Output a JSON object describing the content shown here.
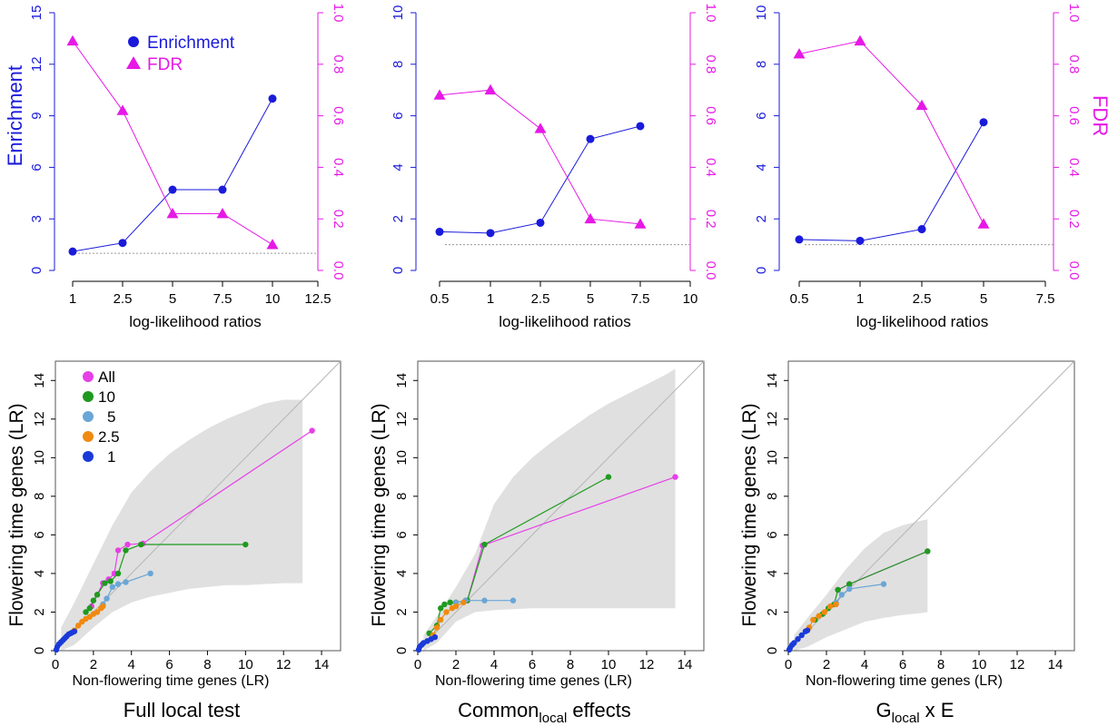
{
  "figure": {
    "background": "#ffffff"
  },
  "colors": {
    "enrichment": "#1a1adb",
    "fdr": "#e619e6",
    "all": "#e640e6",
    "lr10": "#1f9a1f",
    "lr5": "#6aa6d6",
    "lr2_5": "#f08a10",
    "lr1": "#1a3ad8",
    "band": "#e0e0e0",
    "axis": "#000000",
    "refline": "#999999"
  },
  "chart_data": [
    {
      "type": "line",
      "panel": "top-left",
      "xlabel": "log-likelihood ratios",
      "ylabel_left": "Enrichment",
      "ylabel_right": "",
      "x_ticks": [
        "1",
        "2.5",
        "5",
        "7.5",
        "10",
        "12.5"
      ],
      "y_left_ticks": [
        0,
        3,
        6,
        9,
        12,
        15
      ],
      "y_left_lim": [
        0,
        15
      ],
      "y_right_ticks": [
        "0.0",
        "0.2",
        "0.4",
        "0.6",
        "0.8",
        "1.0"
      ],
      "y_right_lim": [
        0,
        1
      ],
      "legend": {
        "placement": "top",
        "items": [
          {
            "label": "Enrichment",
            "marker": "circle",
            "color": "#1a1adb"
          },
          {
            "label": "FDR",
            "marker": "triangle",
            "color": "#e619e6"
          }
        ]
      },
      "series": [
        {
          "name": "Enrichment",
          "axis": "left",
          "marker": "circle",
          "color": "#1a1adb",
          "x": [
            "1",
            "2.5",
            "5",
            "7.5",
            "10"
          ],
          "values": [
            1.1,
            1.6,
            4.7,
            4.7,
            10.0
          ]
        },
        {
          "name": "FDR",
          "axis": "right",
          "marker": "triangle",
          "color": "#e619e6",
          "x": [
            "1",
            "2.5",
            "5",
            "7.5",
            "10"
          ],
          "values": [
            0.89,
            0.62,
            0.22,
            0.22,
            0.1
          ]
        }
      ],
      "reference_line": {
        "axis": "left",
        "y": 1
      }
    },
    {
      "type": "line",
      "panel": "top-middle",
      "xlabel": "log-likelihood ratios",
      "ylabel_left": "",
      "ylabel_right": "",
      "x_ticks": [
        "0.5",
        "1",
        "2.5",
        "5",
        "7.5",
        "10"
      ],
      "y_left_ticks": [
        0,
        2,
        4,
        6,
        8,
        10
      ],
      "y_left_lim": [
        0,
        10
      ],
      "y_right_ticks": [
        "0.0",
        "0.2",
        "0.4",
        "0.6",
        "0.8",
        "1.0"
      ],
      "y_right_lim": [
        0,
        1
      ],
      "series": [
        {
          "name": "Enrichment",
          "axis": "left",
          "marker": "circle",
          "color": "#1a1adb",
          "x": [
            "0.5",
            "1",
            "2.5",
            "5",
            "7.5"
          ],
          "values": [
            1.5,
            1.45,
            1.85,
            5.1,
            5.6
          ]
        },
        {
          "name": "FDR",
          "axis": "right",
          "marker": "triangle",
          "color": "#e619e6",
          "x": [
            "0.5",
            "1",
            "2.5",
            "5",
            "7.5"
          ],
          "values": [
            0.68,
            0.7,
            0.55,
            0.2,
            0.18
          ]
        }
      ],
      "reference_line": {
        "axis": "left",
        "y": 1
      }
    },
    {
      "type": "line",
      "panel": "top-right",
      "xlabel": "log-likelihood ratios",
      "ylabel_left": "",
      "ylabel_right": "FDR",
      "x_ticks": [
        "0.5",
        "1",
        "2.5",
        "5",
        "7.5"
      ],
      "y_left_ticks": [
        0,
        2,
        4,
        6,
        8,
        10
      ],
      "y_left_lim": [
        0,
        10
      ],
      "y_right_ticks": [
        "0.0",
        "0.2",
        "0.4",
        "0.6",
        "0.8",
        "1.0"
      ],
      "y_right_lim": [
        0,
        1
      ],
      "series": [
        {
          "name": "Enrichment",
          "axis": "left",
          "marker": "circle",
          "color": "#1a1adb",
          "x": [
            "0.5",
            "1",
            "2.5",
            "5"
          ],
          "values": [
            1.2,
            1.15,
            1.6,
            5.75
          ]
        },
        {
          "name": "FDR",
          "axis": "right",
          "marker": "triangle",
          "color": "#e619e6",
          "x": [
            "0.5",
            "1",
            "2.5",
            "5"
          ],
          "values": [
            0.84,
            0.89,
            0.64,
            0.18
          ]
        }
      ],
      "reference_line": {
        "axis": "left",
        "y": 1
      }
    },
    {
      "type": "scatter",
      "panel": "bottom-left",
      "title": "Full local test",
      "xlabel": "Non-flowering time genes (LR)",
      "ylabel": "Flowering time genes (LR)",
      "xlim": [
        0,
        15
      ],
      "ylim": [
        0,
        15
      ],
      "ticks": [
        0,
        2,
        4,
        6,
        8,
        10,
        12,
        14
      ],
      "diagonal": true,
      "band": {
        "x": [
          0.3,
          1,
          2,
          3,
          4,
          5,
          6,
          7,
          8,
          9,
          10,
          11,
          12,
          13,
          13
        ],
        "upper": [
          1.2,
          2.5,
          4.5,
          6.5,
          8.2,
          9.3,
          10.2,
          10.9,
          11.5,
          12.0,
          12.4,
          12.8,
          13.0,
          13.0,
          3.5
        ],
        "lower": [
          0.0,
          0.3,
          1.2,
          2.0,
          2.5,
          2.8,
          3.0,
          3.2,
          3.3,
          3.4,
          3.4,
          3.45,
          3.5,
          3.5,
          3.5
        ]
      },
      "legend": {
        "placement": "top-left",
        "items": [
          {
            "label": "All",
            "color": "#e640e6"
          },
          {
            "label": "10",
            "color": "#1f9a1f"
          },
          {
            "label": "5",
            "color": "#6aa6d6"
          },
          {
            "label": "2.5",
            "color": "#f08a10"
          },
          {
            "label": "1",
            "color": "#1a3ad8"
          }
        ]
      },
      "series": [
        {
          "name": "1",
          "color": "#1a3ad8",
          "points": [
            [
              0.05,
              0.05
            ],
            [
              0.1,
              0.2
            ],
            [
              0.2,
              0.35
            ],
            [
              0.3,
              0.45
            ],
            [
              0.4,
              0.55
            ],
            [
              0.5,
              0.65
            ],
            [
              0.6,
              0.75
            ],
            [
              0.7,
              0.85
            ],
            [
              0.8,
              0.9
            ],
            [
              0.9,
              0.95
            ],
            [
              1.0,
              1.0
            ]
          ]
        },
        {
          "name": "2.5",
          "color": "#f08a10",
          "points": [
            [
              1.0,
              1.05
            ],
            [
              1.2,
              1.3
            ],
            [
              1.4,
              1.5
            ],
            [
              1.6,
              1.65
            ],
            [
              1.8,
              1.75
            ],
            [
              2.0,
              1.9
            ],
            [
              2.2,
              2.0
            ],
            [
              2.4,
              2.2
            ],
            [
              2.5,
              2.3
            ]
          ]
        },
        {
          "name": "5",
          "color": "#6aa6d6",
          "points": [
            [
              2.5,
              2.4
            ],
            [
              2.7,
              2.7
            ],
            [
              3.0,
              3.3
            ],
            [
              3.3,
              3.45
            ],
            [
              3.7,
              3.55
            ],
            [
              5.0,
              4.0
            ]
          ]
        },
        {
          "name": "10",
          "color": "#1f9a1f",
          "points": [
            [
              1.6,
              2.0
            ],
            [
              1.8,
              2.2
            ],
            [
              2.0,
              2.6
            ],
            [
              2.2,
              2.9
            ],
            [
              2.6,
              3.5
            ],
            [
              2.9,
              3.6
            ],
            [
              3.3,
              4.0
            ],
            [
              3.7,
              5.2
            ],
            [
              4.5,
              5.5
            ],
            [
              10.0,
              5.5
            ]
          ]
        },
        {
          "name": "All",
          "color": "#e640e6",
          "points": [
            [
              1.9,
              2.3
            ],
            [
              2.2,
              2.9
            ],
            [
              2.5,
              3.5
            ],
            [
              2.8,
              3.7
            ],
            [
              3.1,
              4.0
            ],
            [
              3.3,
              5.2
            ],
            [
              3.8,
              5.5
            ],
            [
              4.6,
              5.55
            ],
            [
              13.5,
              11.4
            ]
          ]
        }
      ]
    },
    {
      "type": "scatter",
      "panel": "bottom-middle",
      "title": "Commonlocal effects",
      "title_parts": {
        "before": "Common",
        "subscript": "local",
        "after": " effects"
      },
      "xlabel": "Non-flowering time genes (LR)",
      "ylabel": "Flowering time genes (LR)",
      "xlim": [
        0,
        15
      ],
      "ylim": [
        0,
        15
      ],
      "ticks": [
        0,
        2,
        4,
        6,
        8,
        10,
        12,
        14
      ],
      "diagonal": true,
      "band": {
        "x": [
          0.3,
          1,
          2,
          3,
          4,
          5,
          6,
          7,
          8,
          9,
          10,
          11,
          12,
          13,
          13.5,
          13.5
        ],
        "upper": [
          0.8,
          1.8,
          3.3,
          5.0,
          7.6,
          9.0,
          10.0,
          10.8,
          11.5,
          12.2,
          12.8,
          13.3,
          13.8,
          14.3,
          14.6,
          2.2
        ],
        "lower": [
          0.0,
          0.4,
          1.5,
          2.0,
          2.1,
          2.15,
          2.2,
          2.2,
          2.2,
          2.2,
          2.2,
          2.2,
          2.2,
          2.2,
          2.2,
          2.2
        ]
      },
      "series": [
        {
          "name": "1",
          "color": "#1a3ad8",
          "points": [
            [
              0.05,
              0.05
            ],
            [
              0.1,
              0.2
            ],
            [
              0.2,
              0.3
            ],
            [
              0.3,
              0.4
            ],
            [
              0.5,
              0.5
            ],
            [
              0.7,
              0.6
            ],
            [
              0.9,
              0.7
            ]
          ]
        },
        {
          "name": "2.5",
          "color": "#f08a10",
          "points": [
            [
              0.8,
              0.8
            ],
            [
              1.0,
              1.2
            ],
            [
              1.2,
              1.6
            ],
            [
              1.5,
              2.0
            ],
            [
              1.8,
              2.2
            ],
            [
              2.0,
              2.3
            ],
            [
              2.4,
              2.5
            ]
          ]
        },
        {
          "name": "5",
          "color": "#6aa6d6",
          "points": [
            [
              2.0,
              2.5
            ],
            [
              2.5,
              2.6
            ],
            [
              3.5,
              2.6
            ],
            [
              5.0,
              2.6
            ]
          ]
        },
        {
          "name": "10",
          "color": "#1f9a1f",
          "points": [
            [
              0.6,
              0.9
            ],
            [
              1.0,
              1.3
            ],
            [
              1.2,
              2.2
            ],
            [
              1.4,
              2.4
            ],
            [
              1.7,
              2.5
            ],
            [
              2.0,
              2.5
            ],
            [
              2.6,
              2.6
            ],
            [
              3.5,
              5.5
            ],
            [
              10.0,
              9.0
            ]
          ]
        },
        {
          "name": "All",
          "color": "#e640e6",
          "points": [
            [
              2.6,
              2.6
            ],
            [
              3.4,
              5.45
            ],
            [
              13.5,
              9.0
            ]
          ]
        }
      ]
    },
    {
      "type": "scatter",
      "panel": "bottom-right",
      "title": "Glocal x E",
      "title_parts": {
        "before": "G",
        "subscript": "local",
        "after": " x E"
      },
      "xlabel": "Non-flowering time genes (LR)",
      "ylabel": "Flowering time genes (LR)",
      "xlim": [
        0,
        15
      ],
      "ylim": [
        0,
        15
      ],
      "ticks": [
        0,
        2,
        4,
        6,
        8,
        10,
        12,
        14
      ],
      "diagonal": true,
      "band": {
        "x": [
          0.3,
          1,
          2,
          3,
          4,
          5,
          6,
          7,
          7.3,
          7.3
        ],
        "upper": [
          0.8,
          1.7,
          2.9,
          4.2,
          5.3,
          6.1,
          6.5,
          6.75,
          6.8,
          2.0
        ],
        "lower": [
          0.0,
          0.2,
          0.7,
          1.1,
          1.5,
          1.7,
          1.85,
          1.95,
          2.0,
          2.0
        ]
      },
      "series": [
        {
          "name": "1",
          "color": "#1a3ad8",
          "points": [
            [
              0.05,
              0.05
            ],
            [
              0.1,
              0.15
            ],
            [
              0.2,
              0.3
            ],
            [
              0.3,
              0.4
            ],
            [
              0.5,
              0.6
            ],
            [
              0.7,
              0.8
            ],
            [
              0.9,
              1.0
            ],
            [
              1.0,
              1.05
            ]
          ]
        },
        {
          "name": "2.5",
          "color": "#f08a10",
          "points": [
            [
              1.1,
              1.2
            ],
            [
              1.3,
              1.6
            ],
            [
              1.6,
              1.8
            ],
            [
              1.9,
              2.0
            ],
            [
              2.2,
              2.3
            ],
            [
              2.5,
              2.4
            ]
          ]
        },
        {
          "name": "5",
          "color": "#6aa6d6",
          "points": [
            [
              2.5,
              2.5
            ],
            [
              2.8,
              2.9
            ],
            [
              3.2,
              3.2
            ],
            [
              5.0,
              3.45
            ]
          ]
        },
        {
          "name": "10",
          "color": "#1f9a1f",
          "points": [
            [
              1.4,
              1.6
            ],
            [
              1.8,
              1.9
            ],
            [
              2.1,
              2.2
            ],
            [
              2.4,
              2.4
            ],
            [
              2.6,
              3.15
            ],
            [
              3.2,
              3.45
            ],
            [
              7.3,
              5.15
            ]
          ]
        },
        {
          "name": "All",
          "color": "#e640e6",
          "points": [
            [
              2.6,
              3.15
            ],
            [
              3.2,
              3.45
            ],
            [
              7.3,
              5.15
            ]
          ]
        }
      ]
    }
  ]
}
